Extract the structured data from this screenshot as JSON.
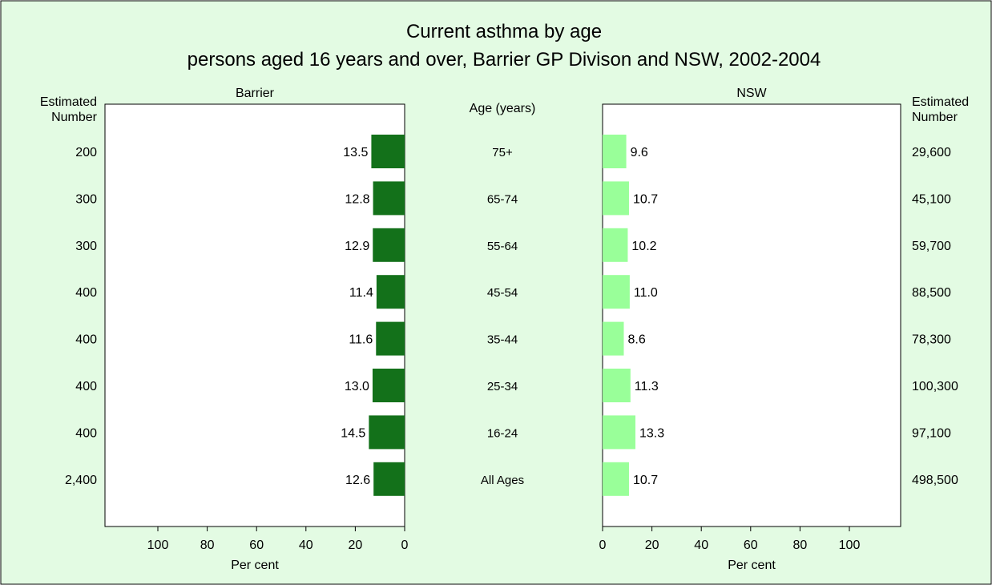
{
  "chart_data": {
    "type": "bar",
    "title": "Current asthma by age",
    "subtitle": "persons aged 16 years and over, Barrier GP Divison and NSW, 2002-2004",
    "center_header": "Age (years)",
    "categories": [
      "75+",
      "65-74",
      "55-64",
      "45-54",
      "35-44",
      "25-34",
      "16-24",
      "All Ages"
    ],
    "series": [
      {
        "name": "Barrier",
        "values": [
          13.5,
          12.8,
          12.9,
          11.4,
          11.6,
          13.0,
          14.5,
          12.6
        ],
        "labels": [
          "13.5",
          "12.8",
          "12.9",
          "11.4",
          "11.6",
          "13.0",
          "14.5",
          "12.6"
        ],
        "estimated_number": [
          "200",
          "300",
          "300",
          "400",
          "400",
          "400",
          "400",
          "2,400"
        ],
        "color": "#13711a"
      },
      {
        "name": "NSW",
        "values": [
          9.6,
          10.7,
          10.2,
          11.0,
          8.6,
          11.3,
          13.3,
          10.7
        ],
        "labels": [
          "9.6",
          "10.7",
          "10.2",
          "11.0",
          "8.6",
          "11.3",
          "13.3",
          "10.7"
        ],
        "estimated_number": [
          "29,600",
          "45,100",
          "59,700",
          "88,500",
          "78,300",
          "100,300",
          "97,100",
          "498,500"
        ],
        "color": "#99ff99"
      }
    ],
    "estimated_header": [
      "Estimated",
      "Number"
    ],
    "xlabel": "Per cent",
    "xticks": [
      0,
      20,
      40,
      60,
      80,
      100
    ],
    "xlim": [
      0,
      120
    ],
    "grid": false,
    "background_color": "#e3fbe3",
    "plot_background": "#ffffff"
  }
}
